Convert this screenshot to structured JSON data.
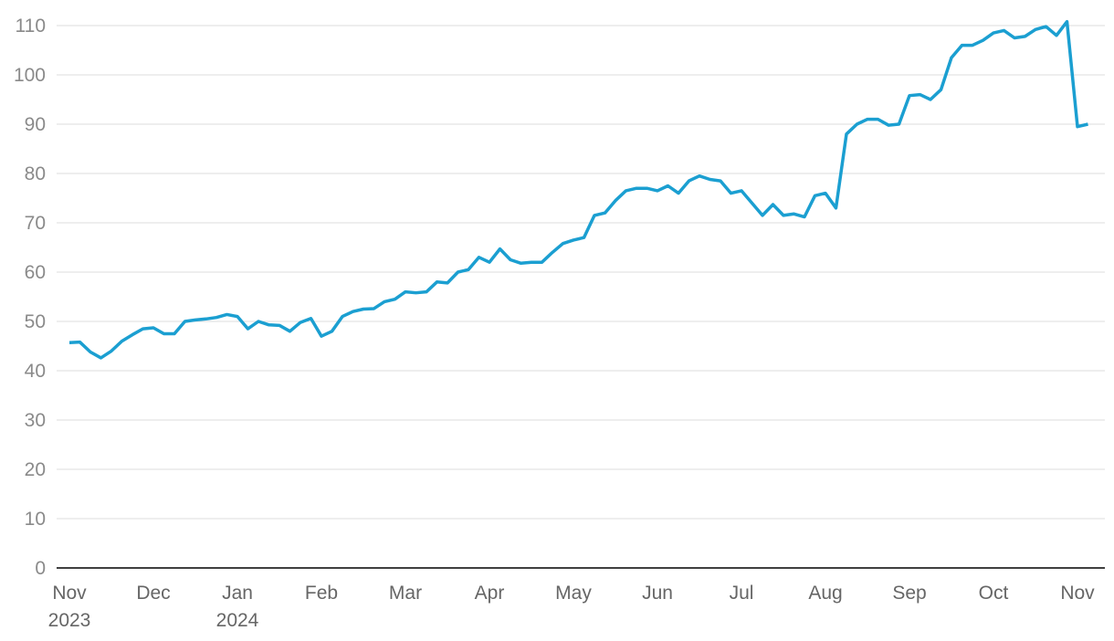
{
  "chart_data": {
    "type": "line",
    "categories": [
      "Nov 2023",
      null,
      null,
      null,
      null,
      null,
      null,
      null,
      "Dec",
      null,
      null,
      null,
      null,
      null,
      null,
      null,
      "Jan 2024",
      null,
      null,
      null,
      null,
      null,
      null,
      null,
      "Feb",
      null,
      null,
      null,
      null,
      null,
      null,
      null,
      "Mar",
      null,
      null,
      null,
      null,
      null,
      null,
      null,
      "Apr",
      null,
      null,
      null,
      null,
      null,
      null,
      null,
      "May",
      null,
      null,
      null,
      null,
      null,
      null,
      null,
      "Jun",
      null,
      null,
      null,
      null,
      null,
      null,
      null,
      "Jul",
      null,
      null,
      null,
      null,
      null,
      null,
      null,
      "Aug",
      null,
      null,
      null,
      null,
      null,
      null,
      null,
      "Sep",
      null,
      null,
      null,
      null,
      null,
      null,
      null,
      "Oct",
      null,
      null,
      null,
      null,
      null,
      null,
      null,
      "Nov",
      null
    ],
    "series": [
      {
        "color": "#1b9fd1",
        "values": [
          45.7,
          45.8,
          43.8,
          42.6,
          44,
          46,
          47.3,
          48.5,
          48.7,
          47.5,
          47.5,
          50,
          50.3,
          50.5,
          50.8,
          51.4,
          51,
          48.5,
          50,
          49.3,
          49.2,
          48,
          49.8,
          50.6,
          47,
          48,
          51,
          52,
          52.5,
          52.6,
          54,
          54.5,
          56,
          55.8,
          56,
          58,
          57.8,
          60,
          60.5,
          63,
          62,
          64.7,
          62.5,
          61.8,
          62,
          62,
          64,
          65.8,
          66.5,
          67,
          71.5,
          72,
          74.5,
          76.5,
          77,
          77,
          76.5,
          77.5,
          76,
          78.5,
          79.5,
          78.8,
          78.5,
          76,
          76.5,
          74,
          71.5,
          73.7,
          71.5,
          71.8,
          71.2,
          75.5,
          76,
          73,
          88,
          90,
          91,
          91,
          89.8,
          90,
          95.8,
          96,
          95,
          97,
          103.5,
          106,
          106,
          107,
          108.5,
          109,
          107.5,
          107.8,
          109.2,
          109.8,
          108,
          110.8,
          89.5,
          90
        ]
      }
    ],
    "ylim": [
      0,
      110
    ],
    "yticks": [
      0,
      10,
      20,
      30,
      40,
      50,
      60,
      70,
      80,
      90,
      100,
      110
    ],
    "grid": true
  }
}
